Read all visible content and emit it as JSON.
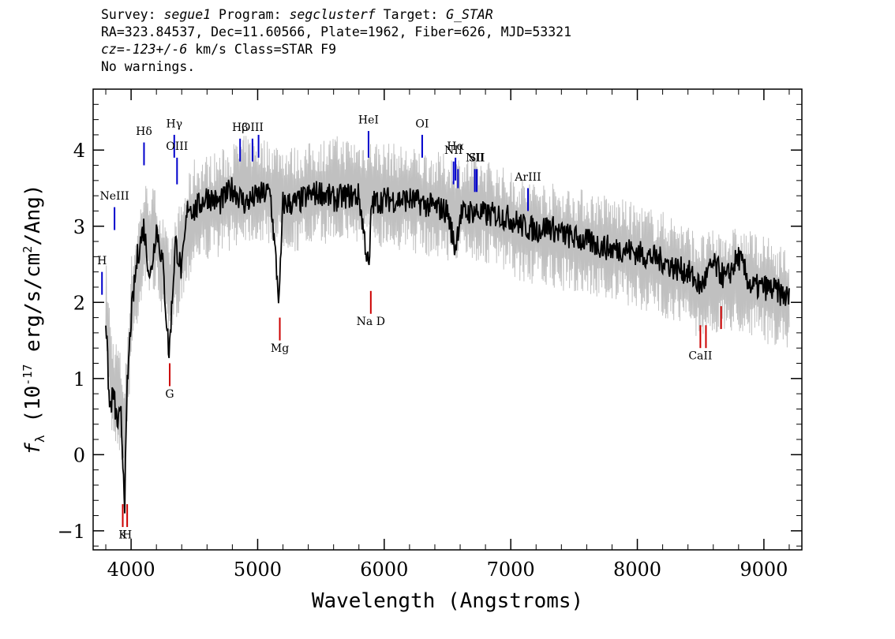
{
  "header": {
    "line1": {
      "survey_label": "Survey: ",
      "survey": "segue1",
      "program_label": " Program: ",
      "program": "segclusterf",
      "target_label": " Target: ",
      "target": "G_STAR"
    },
    "line2": "RA=323.84537, Dec=11.60566, Plate=1962, Fiber=626, MJD=53321",
    "line3": {
      "cz_label": "cz=",
      "cz": "-123+/-6",
      "rest": " km/s Class=STAR F9"
    },
    "line4": "No warnings."
  },
  "chart_data": {
    "type": "line",
    "xlabel": "Wavelength (Angstroms)",
    "ylabel_parts": {
      "f": "f",
      "sub": "λ",
      "open": " (10",
      "exp": "-17",
      "mid": " erg/s/cm",
      "exp2": "2",
      "close": "/Ang)"
    },
    "xlim": [
      3700,
      9300
    ],
    "ylim": [
      -1.25,
      4.8
    ],
    "x_ticks": [
      4000,
      5000,
      6000,
      7000,
      8000,
      9000
    ],
    "x_tick_labels": [
      "4000",
      "5000",
      "6000",
      "7000",
      "8000",
      "9000"
    ],
    "y_ticks": [
      -1,
      0,
      1,
      2,
      3,
      4
    ],
    "y_tick_labels": [
      "−1",
      "0",
      "1",
      "2",
      "3",
      "4"
    ],
    "series": [
      {
        "role": "error_band",
        "color": "#c0c0c0",
        "x": [
          3800,
          3850,
          3900,
          3950,
          4000,
          4100,
          4200,
          4300,
          4400,
          4500,
          4700,
          4900,
          5100,
          5300,
          5600,
          5900,
          6200,
          6500,
          6800,
          7100,
          7400,
          7700,
          8000,
          8300,
          8500,
          8700,
          8900,
          9100,
          9200
        ],
        "y": [
          1.9,
          0.9,
          0.8,
          0.3,
          1.9,
          2.9,
          2.8,
          2.1,
          2.7,
          3.2,
          3.3,
          3.5,
          3.45,
          3.35,
          3.5,
          3.45,
          3.35,
          3.25,
          3.2,
          2.95,
          2.85,
          2.75,
          2.6,
          2.45,
          2.2,
          2.3,
          2.25,
          2.1,
          2.0
        ]
      },
      {
        "role": "flux",
        "color": "#000000",
        "x": [
          3800,
          3830,
          3860,
          3890,
          3920,
          3950,
          3970,
          4000,
          4050,
          4100,
          4150,
          4200,
          4250,
          4300,
          4350,
          4400,
          4450,
          4500,
          4600,
          4700,
          4800,
          4900,
          5000,
          5100,
          5170,
          5200,
          5300,
          5400,
          5500,
          5600,
          5700,
          5800,
          5880,
          5900,
          6000,
          6100,
          6200,
          6300,
          6400,
          6500,
          6560,
          6600,
          6700,
          6800,
          6900,
          7000,
          7100,
          7200,
          7300,
          7400,
          7500,
          7600,
          7700,
          7800,
          7900,
          8000,
          8100,
          8200,
          8300,
          8400,
          8500,
          8600,
          8700,
          8800,
          8900,
          9000,
          9100,
          9200
        ],
        "y": [
          1.8,
          0.6,
          0.8,
          0.4,
          0.5,
          -0.6,
          0.9,
          1.8,
          2.6,
          3.0,
          2.3,
          3.0,
          2.5,
          1.3,
          2.8,
          2.4,
          3.3,
          3.2,
          3.4,
          3.3,
          3.5,
          3.3,
          3.4,
          3.45,
          2.0,
          3.3,
          3.3,
          3.4,
          3.45,
          3.35,
          3.4,
          3.4,
          2.4,
          3.3,
          3.35,
          3.35,
          3.35,
          3.3,
          3.25,
          3.2,
          2.7,
          3.15,
          3.2,
          3.15,
          3.15,
          3.1,
          3.0,
          2.95,
          3.0,
          2.9,
          2.85,
          2.8,
          2.75,
          2.7,
          2.7,
          2.65,
          2.6,
          2.55,
          2.45,
          2.4,
          2.2,
          2.5,
          2.3,
          2.6,
          2.2,
          2.2,
          2.15,
          2.05
        ]
      }
    ],
    "emission_lines": [
      {
        "label": "H",
        "x": 3770,
        "y0": 2.1,
        "y1": 2.4,
        "ly": 2.5
      },
      {
        "label": "NeIII",
        "x": 3869,
        "y0": 2.95,
        "y1": 3.25,
        "ly": 3.35
      },
      {
        "label": "Hδ",
        "x": 4102,
        "y0": 3.8,
        "y1": 4.1,
        "ly": 4.2
      },
      {
        "label": "Hγ",
        "x": 4341,
        "y0": 3.9,
        "y1": 4.2,
        "ly": 4.3
      },
      {
        "label": "OIII",
        "x": 4363,
        "y0": 3.55,
        "y1": 3.9,
        "ly": 4.0
      },
      {
        "label": "Hβ",
        "x": 4861,
        "y0": 3.85,
        "y1": 4.15,
        "ly": 4.25
      },
      {
        "label": "OIII",
        "x": 4959,
        "y0": 3.85,
        "y1": 4.15,
        "ly": 4.25
      },
      {
        "label": "",
        "x": 5007,
        "y0": 3.9,
        "y1": 4.2,
        "ly": 4.3
      },
      {
        "label": "HeI",
        "x": 5876,
        "y0": 3.9,
        "y1": 4.25,
        "ly": 4.35
      },
      {
        "label": "OI",
        "x": 6300,
        "y0": 3.9,
        "y1": 4.2,
        "ly": 4.3
      },
      {
        "label": "NII",
        "x": 6548,
        "y0": 3.55,
        "y1": 3.85,
        "ly": 3.95
      },
      {
        "label": "Hα",
        "x": 6563,
        "y0": 3.6,
        "y1": 3.9,
        "ly": 4.0
      },
      {
        "label": "",
        "x": 6583,
        "y0": 3.5,
        "y1": 3.75,
        "ly": 3.85
      },
      {
        "label": "NII",
        "x": 6716,
        "y0": 3.45,
        "y1": 3.75,
        "ly": 3.85
      },
      {
        "label": "SII",
        "x": 6731,
        "y0": 3.45,
        "y1": 3.75,
        "ly": 3.85
      },
      {
        "label": "ArIII",
        "x": 7136,
        "y0": 3.2,
        "y1": 3.5,
        "ly": 3.6
      }
    ],
    "absorption_lines": [
      {
        "label": "K",
        "x": 3934,
        "y0": -0.65,
        "y1": -0.95,
        "ly": -1.1
      },
      {
        "label": "H",
        "x": 3969,
        "y0": -0.65,
        "y1": -0.95,
        "ly": -1.1
      },
      {
        "label": "G",
        "x": 4305,
        "y0": 1.2,
        "y1": 0.9,
        "ly": 0.75
      },
      {
        "label": "Mg",
        "x": 5175,
        "y0": 1.8,
        "y1": 1.5,
        "ly": 1.35
      },
      {
        "label": "Na  D",
        "x": 5894,
        "y0": 2.15,
        "y1": 1.85,
        "ly": 1.7
      },
      {
        "label": "CaII",
        "x": 8498,
        "y0": 1.7,
        "y1": 1.4,
        "ly": 1.25
      },
      {
        "label": "",
        "x": 8542,
        "y0": 1.7,
        "y1": 1.4,
        "ly": 1.25
      },
      {
        "label": "",
        "x": 8662,
        "y0": 1.95,
        "y1": 1.65,
        "ly": 1.5
      }
    ],
    "emission_color": "#0000cc",
    "absorption_color": "#cc0000"
  }
}
